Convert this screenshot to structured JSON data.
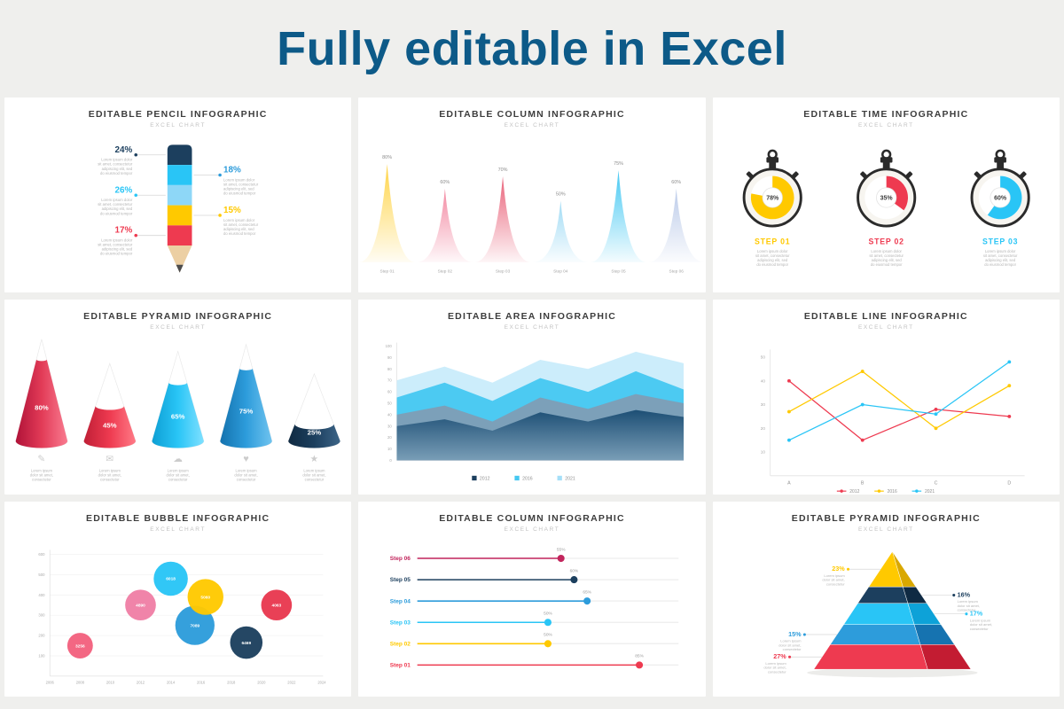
{
  "page": {
    "title": "Fully editable in Excel",
    "title_color": "#0d5a88",
    "background": "#efefed"
  },
  "lorem4": [
    "Lorem ipsum dolor",
    "sit amet, consectetur",
    "adipiscing elit, sed",
    "do eiusmod tempor"
  ],
  "lorem3": [
    "Lorem ipsum",
    "dolor sit amet,",
    "consectetur"
  ],
  "panels": [
    {
      "id": "pencil",
      "title": "EDITABLE PENCIL INFOGRAPHIC",
      "subtitle": "EXCEL CHART"
    },
    {
      "id": "spikes",
      "title": "EDITABLE COLUMN INFOGRAPHIC",
      "subtitle": "EXCEL CHART"
    },
    {
      "id": "time",
      "title": "EDITABLE TIME INFOGRAPHIC",
      "subtitle": "EXCEL CHART"
    },
    {
      "id": "cones",
      "title": "EDITABLE PYRAMID INFOGRAPHIC",
      "subtitle": "EXCEL CHART"
    },
    {
      "id": "area",
      "title": "EDITABLE AREA INFOGRAPHIC",
      "subtitle": "EXCEL CHART"
    },
    {
      "id": "line",
      "title": "EDITABLE LINE INFOGRAPHIC",
      "subtitle": "EXCEL CHART"
    },
    {
      "id": "bubble",
      "title": "EDITABLE BUBBLE INFOGRAPHIC",
      "subtitle": "EXCEL CHART"
    },
    {
      "id": "lollipop",
      "title": "EDITABLE COLUMN INFOGRAPHIC",
      "subtitle": "EXCEL CHART"
    },
    {
      "id": "pyramid",
      "title": "EDITABLE PYRAMID INFOGRAPHIC",
      "subtitle": "EXCEL CHART"
    }
  ],
  "chart_data": [
    {
      "id": "pencil",
      "type": "other",
      "title": "Editable Pencil Infographic",
      "segment_colors": [
        "#1c3f5e",
        "#29c5f6",
        "#8ed7f7",
        "#ffc900",
        "#ee3a50"
      ],
      "left_labels": [
        {
          "value": "24%",
          "color": "#1c3f5e",
          "segment": 0
        },
        {
          "value": "26%",
          "color": "#29c5f6",
          "segment": 2
        },
        {
          "value": "17%",
          "color": "#ee3a50",
          "segment": 4
        }
      ],
      "right_labels": [
        {
          "value": "18%",
          "color": "#2d9cdb",
          "segment": 1
        },
        {
          "value": "15%",
          "color": "#ffc900",
          "segment": 3
        }
      ]
    },
    {
      "id": "spikes",
      "type": "area",
      "ylim": [
        0,
        100
      ],
      "categories": [
        "Step 01",
        "Step 02",
        "Step 03",
        "Step 04",
        "Step 05",
        "Step 06"
      ],
      "values": [
        80,
        60,
        70,
        50,
        75,
        60
      ],
      "colors": [
        "#ffd23f",
        "#f2849e",
        "#e85c74",
        "#9bd9f4",
        "#3ec6f2",
        "#b9c9e8"
      ]
    },
    {
      "id": "time",
      "type": "pie",
      "steps": [
        {
          "label": "STEP 01",
          "value": 78,
          "display": "78%",
          "color": "#ffc900"
        },
        {
          "label": "STEP 02",
          "value": 35,
          "display": "35%",
          "color": "#ee3a50"
        },
        {
          "label": "STEP 03",
          "value": 60,
          "display": "60%",
          "color": "#29c5f6"
        }
      ]
    },
    {
      "id": "cones",
      "type": "bar",
      "items": [
        {
          "label": "80%",
          "value": 80,
          "height": 118,
          "color": "#e23b57",
          "dark": "#b01238",
          "light": "#f97b90",
          "icon": "✎",
          "icon_name": "pencil-icon"
        },
        {
          "label": "45%",
          "value": 45,
          "height": 90,
          "color": "#ee3a50",
          "dark": "#c01f36",
          "light": "#ff7a86",
          "icon": "✉",
          "icon_name": "mail-icon"
        },
        {
          "label": "65%",
          "value": 65,
          "height": 104,
          "color": "#29c5f6",
          "dark": "#0e9fd4",
          "light": "#7fe0ff",
          "icon": "☁",
          "icon_name": "cloud-icon"
        },
        {
          "label": "75%",
          "value": 75,
          "height": 112,
          "color": "#2d9cdb",
          "dark": "#1472ae",
          "light": "#6fc3ef",
          "icon": "♥",
          "icon_name": "heart-icon"
        },
        {
          "label": "25%",
          "value": 25,
          "height": 78,
          "color": "#1c3f5e",
          "dark": "#102a42",
          "light": "#3c6487",
          "icon": "★",
          "icon_name": "star-icon"
        }
      ]
    },
    {
      "id": "area",
      "type": "area",
      "x_count": 7,
      "ylim": [
        0,
        100
      ],
      "yticks": [
        0,
        10,
        20,
        30,
        40,
        50,
        60,
        70,
        80,
        90,
        100
      ],
      "series": [
        {
          "name": "layer-light",
          "color": "#c9ecfb",
          "values": [
            70,
            82,
            68,
            88,
            80,
            95,
            85
          ]
        },
        {
          "name": "layer-cyan",
          "color": "#45c8f1",
          "values": [
            55,
            68,
            52,
            72,
            60,
            78,
            62
          ]
        },
        {
          "name": "layer-steel",
          "color": "#7e9db5",
          "values": [
            40,
            48,
            34,
            55,
            45,
            58,
            50
          ]
        },
        {
          "name": "layer-navy",
          "color": "#1d4f75",
          "values": [
            30,
            36,
            26,
            42,
            34,
            44,
            38
          ],
          "gradient": true
        }
      ],
      "legend": [
        {
          "label": "2012",
          "color": "#1c3f5e"
        },
        {
          "label": "2016",
          "color": "#45c8f1"
        },
        {
          "label": "2021",
          "color": "#a5dff8"
        }
      ]
    },
    {
      "id": "line",
      "type": "line",
      "categories": [
        "A",
        "B",
        "C",
        "D"
      ],
      "yticks": [
        10,
        20,
        30,
        40,
        50
      ],
      "series": [
        {
          "name": "2012",
          "color": "#ee3a50",
          "values": [
            40,
            15,
            28,
            25
          ]
        },
        {
          "name": "2016",
          "color": "#ffc900",
          "values": [
            27,
            44,
            20,
            38
          ]
        },
        {
          "name": "2021",
          "color": "#29c5f6",
          "values": [
            15,
            30,
            26,
            48
          ]
        }
      ]
    },
    {
      "id": "bubble",
      "type": "scatter",
      "xticks": [
        2006,
        2008,
        2010,
        2012,
        2014,
        2016,
        2018,
        2020,
        2022,
        2024
      ],
      "yticks": [
        100,
        200,
        300,
        400,
        500,
        600
      ],
      "points": [
        {
          "label": "3256",
          "x": 2008,
          "y": 150,
          "r": 15,
          "color": "#f2617e"
        },
        {
          "label": "4890",
          "x": 2012,
          "y": 350,
          "r": 18,
          "color": "#ef7fa5"
        },
        {
          "label": "6018",
          "x": 2014,
          "y": 480,
          "r": 20,
          "color": "#29c5f6"
        },
        {
          "label": "7089",
          "x": 2015.6,
          "y": 250,
          "r": 23,
          "color": "#2d9cdb"
        },
        {
          "label": "5060",
          "x": 2016.3,
          "y": 390,
          "r": 21,
          "color": "#ffc900"
        },
        {
          "label": "6469",
          "x": 2019,
          "y": 165,
          "r": 19,
          "color": "#1c3f5e"
        },
        {
          "label": "4063",
          "x": 2021,
          "y": 350,
          "r": 18,
          "color": "#e8384f"
        }
      ]
    },
    {
      "id": "lollipop",
      "type": "bar",
      "rows": [
        {
          "label": "Step 06",
          "value": 55,
          "display": "55%",
          "color": "#c2255c"
        },
        {
          "label": "Step 05",
          "value": 60,
          "display": "60%",
          "color": "#1c3f5e"
        },
        {
          "label": "Step 04",
          "value": 65,
          "display": "65%",
          "color": "#2d9cdb"
        },
        {
          "label": "Step 03",
          "value": 50,
          "display": "50%",
          "color": "#29c5f6"
        },
        {
          "label": "Step 02",
          "value": 50,
          "display": "50%",
          "color": "#ffc900"
        },
        {
          "label": "Step 01",
          "value": 85,
          "display": "85%",
          "color": "#ee3a50"
        }
      ]
    },
    {
      "id": "pyramid",
      "type": "other",
      "layers": [
        {
          "label": "23%",
          "color": "#ffc900",
          "dark": "#d9a800",
          "to": 0.3,
          "side": "left"
        },
        {
          "label": "16%",
          "color": "#1c3f5e",
          "dark": "#0f2a43",
          "to": 0.44,
          "side": "right"
        },
        {
          "label": "17%",
          "color": "#29c5f6",
          "dark": "#0da2d8",
          "to": 0.62,
          "side": "right"
        },
        {
          "label": "15%",
          "color": "#2d9cdb",
          "dark": "#1673b0",
          "to": 0.79,
          "side": "left"
        },
        {
          "label": "27%",
          "color": "#ee3a50",
          "dark": "#c31c32",
          "to": 1.0,
          "side": "left"
        }
      ]
    }
  ]
}
